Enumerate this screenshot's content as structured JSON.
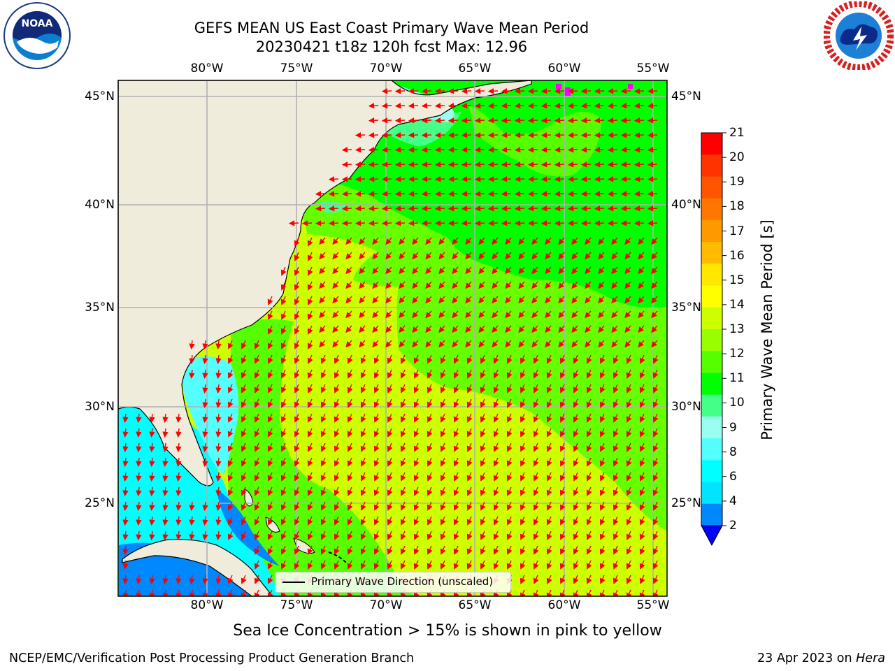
{
  "title_line1": "GEFS MEAN US East Coast Primary Wave Mean Period",
  "title_line2": "20230421 t18z 120h fcst   Max: 12.96",
  "logos": {
    "left": "noara-logo",
    "right": "nws-logo",
    "noaa_text": "NOAA",
    "noaa_ring": "NATIONAL OCEANIC AND ATMOSPHERIC ADMINISTRATION · U.S. DEPARTMENT OF COMMERCE",
    "nws_ring": "NATIONAL WEATHER SERVICE"
  },
  "axes": {
    "lon_labels_top": [
      "80°W",
      "75°W",
      "70°W",
      "65°W",
      "60°W",
      "55°W"
    ],
    "lon_labels_bottom": [
      "80°W",
      "75°W",
      "70°W",
      "65°W",
      "60°W",
      "55°W"
    ],
    "lat_labels_left": [
      "45°N",
      "40°N",
      "35°N",
      "30°N",
      "25°N"
    ],
    "lat_labels_right": [
      "45°N",
      "40°N",
      "35°N",
      "30°N",
      "25°N"
    ]
  },
  "legend": {
    "label": "Primary Wave Direction (unscaled)"
  },
  "colorbar": {
    "title": "Primary Wave Mean Period [s]",
    "ticks": [
      "21",
      "20",
      "19",
      "18",
      "17",
      "16",
      "15",
      "14",
      "13",
      "12",
      "11",
      "10",
      "9",
      "8",
      "6",
      "4",
      "2"
    ],
    "colors_top_to_bottom": [
      "#ff0000",
      "#ff3300",
      "#ff5500",
      "#ff7700",
      "#ff9900",
      "#ffbb00",
      "#ffe800",
      "#ffff00",
      "#ccff00",
      "#99ff00",
      "#55ff00",
      "#00ff00",
      "#44ff88",
      "#99ffee",
      "#55ffff",
      "#00ffff",
      "#00e4ff",
      "#0088ff"
    ],
    "extend_color": "#0000ff"
  },
  "map_colors": {
    "land": "#efecdc",
    "grid": "#b0b0b0",
    "arrows": "#ff0000",
    "coast": "#000000",
    "ice": "#ff00ff"
  },
  "subtitle": "Sea Ice Concentration > 15% is shown in pink to yellow",
  "footer_left": "NCEP/EMC/Verification Post Processing Product Generation Branch",
  "footer_right_prefix": "23 Apr 2023 on ",
  "footer_right_host": "Hera"
}
